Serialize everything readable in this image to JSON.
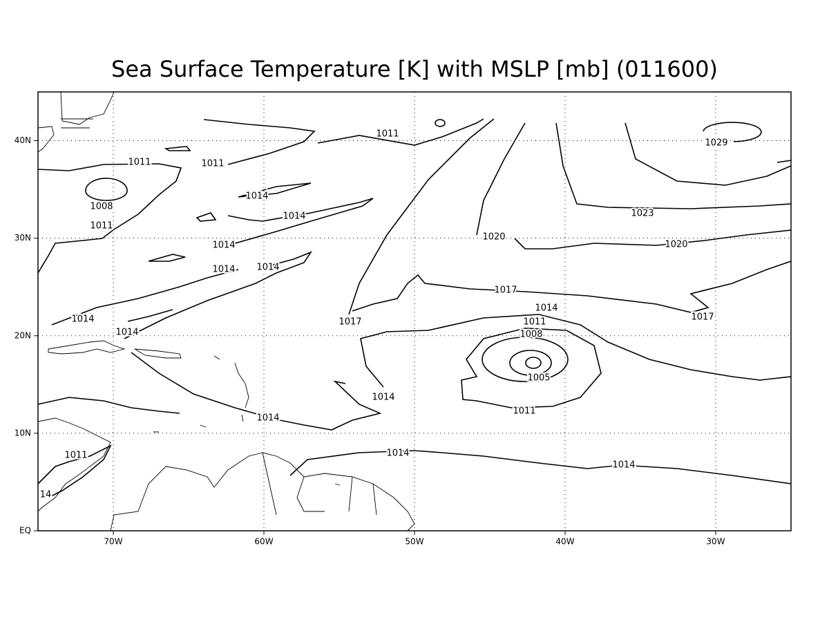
{
  "title": "Sea Surface Temperature [K] with MSLP [mb] (011600)",
  "map": {
    "lon_labels": [
      "70W",
      "60W",
      "50W",
      "40W",
      "30W"
    ],
    "lat_labels": [
      "EQ",
      "10N",
      "20N",
      "30N",
      "40N"
    ],
    "contour_labels": [
      "1011",
      "1011",
      "1011",
      "1008",
      "1011",
      "1014",
      "1014",
      "1014",
      "1014",
      "1014",
      "1014",
      "1014",
      "1014",
      "1014",
      "1017",
      "1017",
      "1017",
      "1020",
      "1020",
      "1023",
      "1029",
      "1014",
      "1011",
      "1008",
      "1005",
      "1011",
      "1014",
      "1014",
      "1011",
      "14"
    ]
  }
}
